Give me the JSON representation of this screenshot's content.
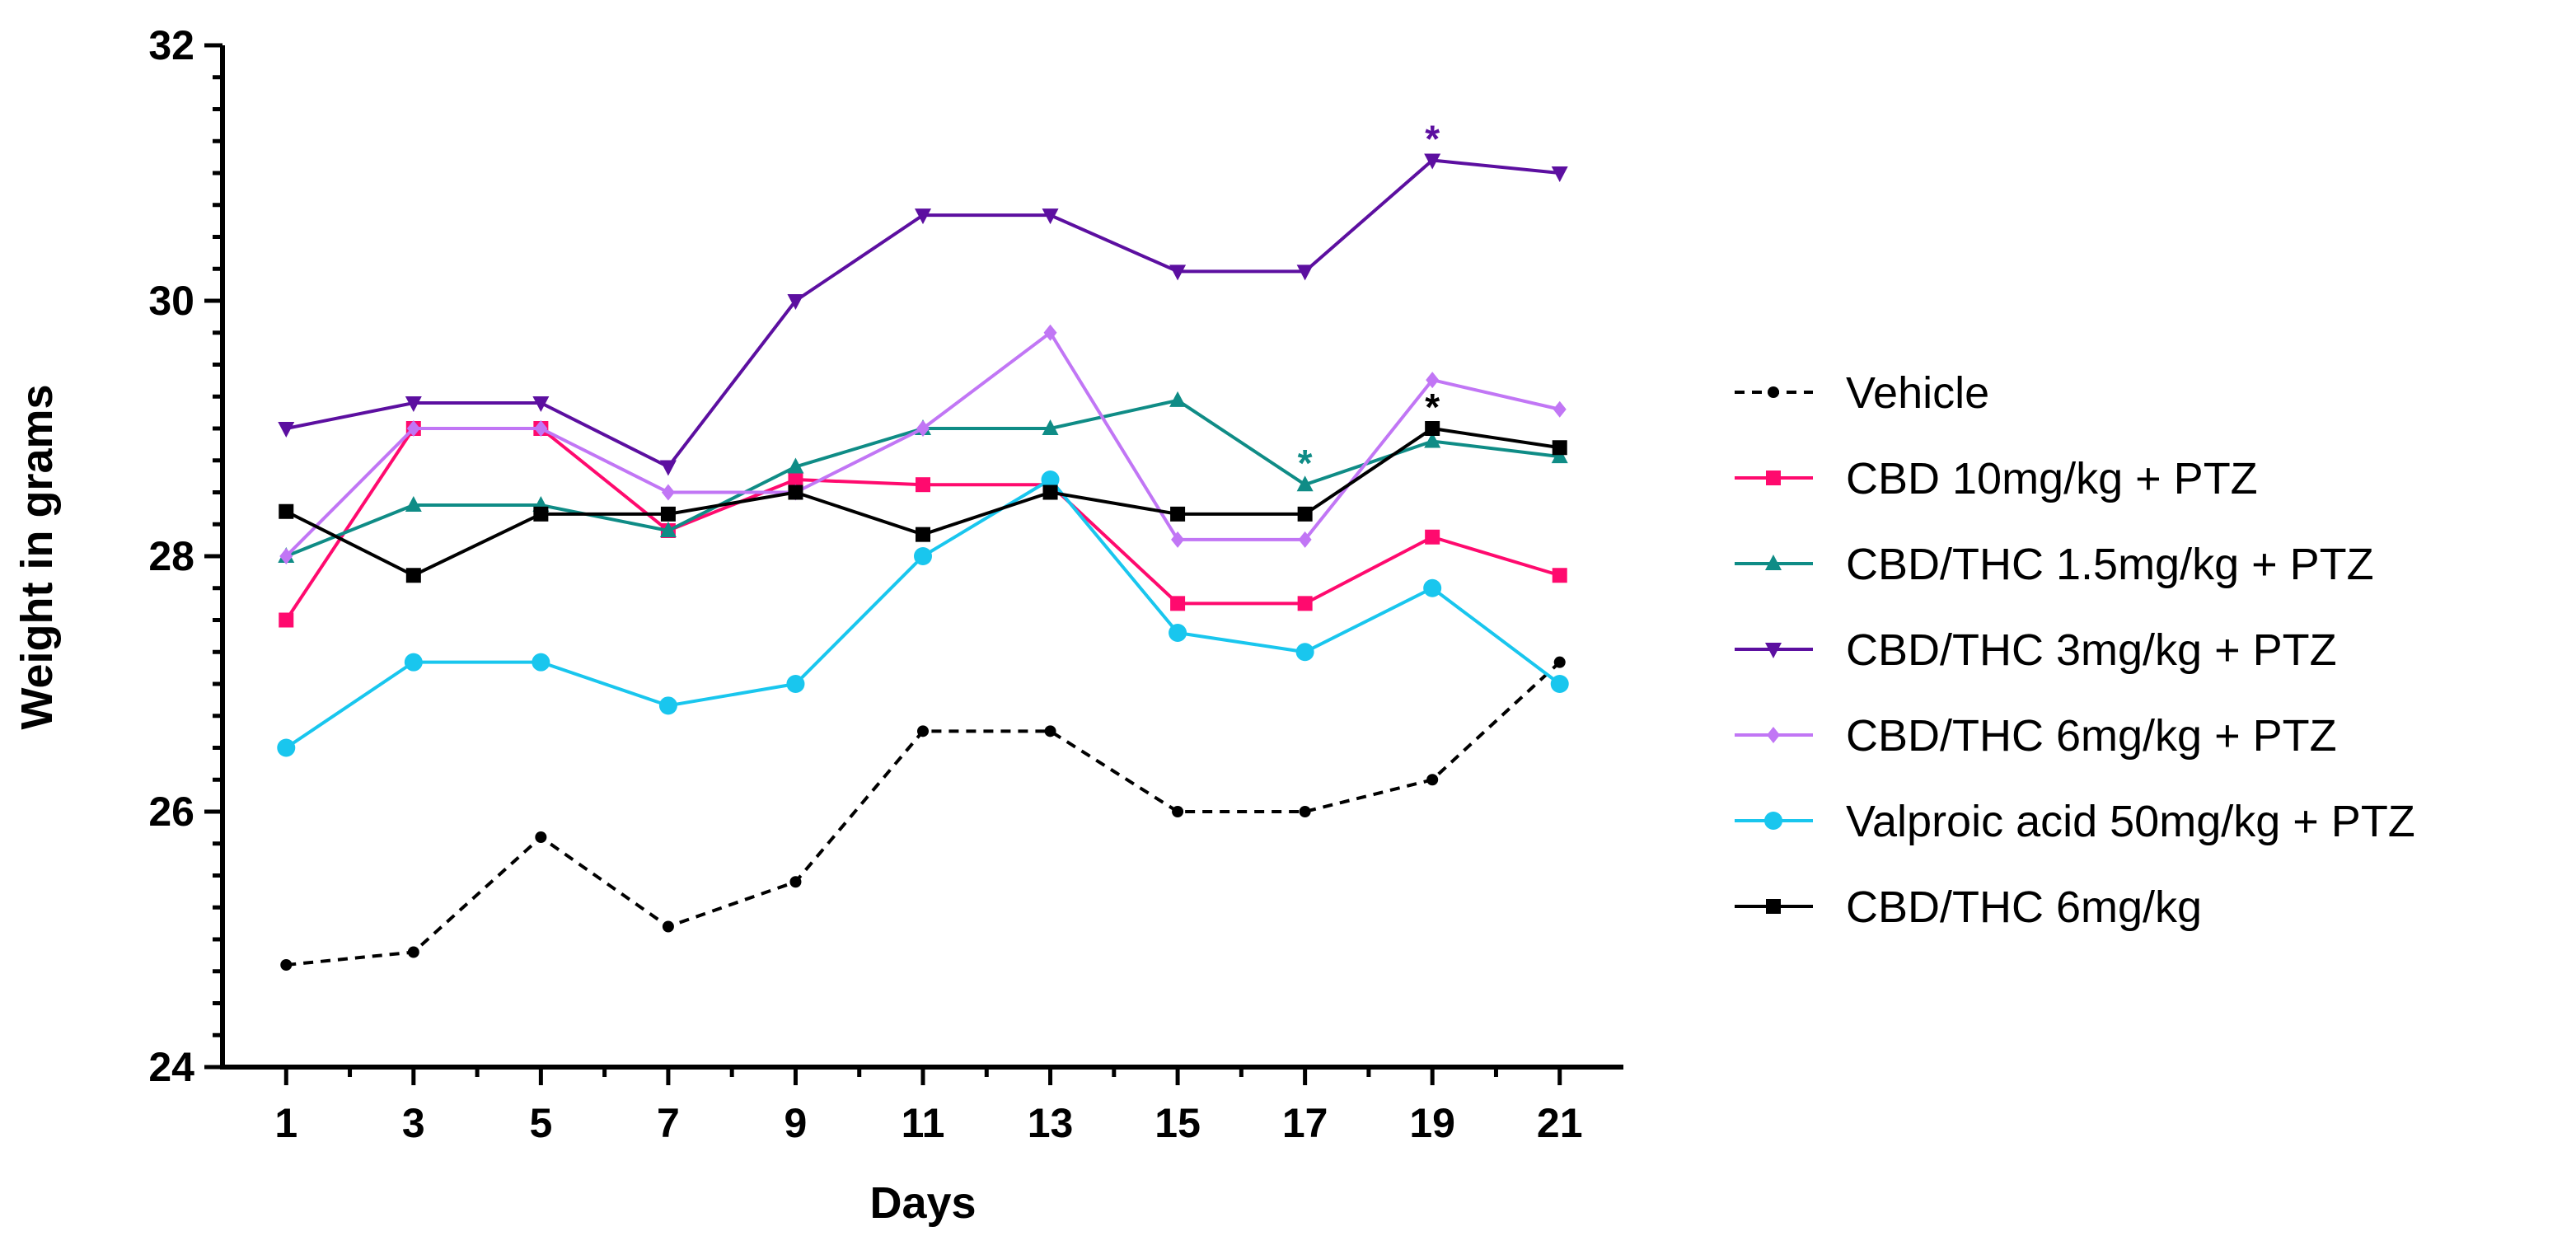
{
  "chart_data": {
    "type": "line",
    "title": "",
    "xlabel": "Days",
    "ylabel": "Weight in grams",
    "x": [
      1,
      3,
      5,
      7,
      9,
      11,
      13,
      15,
      17,
      19,
      21
    ],
    "xticks": [
      "1",
      "3",
      "5",
      "7",
      "9",
      "11",
      "13",
      "15",
      "17",
      "19",
      "21"
    ],
    "xlim": [
      0,
      22
    ],
    "ylim": [
      24,
      32
    ],
    "yticks": [
      "24",
      "26",
      "28",
      "30",
      "32"
    ],
    "grid": false,
    "legend_position": "right",
    "series": [
      {
        "name": "Vehicle",
        "color": "#000000",
        "marker": "circle",
        "dashed": true,
        "values": [
          24.8,
          24.9,
          25.8,
          25.1,
          25.45,
          26.63,
          26.63,
          26.0,
          26.0,
          26.25,
          27.17
        ]
      },
      {
        "name": "CBD 10mg/kg + PTZ",
        "color": "#ff0a6e",
        "marker": "square",
        "dashed": false,
        "values": [
          27.5,
          29.0,
          29.0,
          28.2,
          28.6,
          28.56,
          28.56,
          27.63,
          27.63,
          28.15,
          27.85
        ]
      },
      {
        "name": "CBD/THC 1.5mg/kg + PTZ",
        "color": "#0f8c86",
        "marker": "triangle-up",
        "dashed": false,
        "values": [
          28.0,
          28.4,
          28.4,
          28.2,
          28.7,
          29.0,
          29.0,
          29.22,
          28.56,
          28.9,
          28.78
        ]
      },
      {
        "name": "CBD/THC 3mg/kg + PTZ",
        "color": "#5c0fa0",
        "marker": "triangle-down",
        "dashed": false,
        "values": [
          29.0,
          29.2,
          29.2,
          28.7,
          30.0,
          30.67,
          30.67,
          30.23,
          30.23,
          31.1,
          31.0
        ]
      },
      {
        "name": "CBD/THC 6mg/kg + PTZ",
        "color": "#c176f5",
        "marker": "diamond",
        "dashed": false,
        "values": [
          28.0,
          29.0,
          29.0,
          28.5,
          28.5,
          29.0,
          29.75,
          28.13,
          28.13,
          29.38,
          29.15
        ]
      },
      {
        "name": "Valproic acid 50mg/kg + PTZ",
        "color": "#19c6ee",
        "marker": "big-circle",
        "dashed": false,
        "values": [
          26.5,
          27.17,
          27.17,
          26.83,
          27.0,
          28.0,
          28.6,
          27.4,
          27.25,
          27.75,
          27.0
        ]
      },
      {
        "name": "CBD/THC 6mg/kg",
        "color": "#000000",
        "marker": "square",
        "dashed": false,
        "values": [
          28.35,
          27.85,
          28.33,
          28.33,
          28.5,
          28.17,
          28.5,
          28.33,
          28.33,
          29.0,
          28.85
        ]
      }
    ],
    "annotations": [
      {
        "text": "*",
        "x": 19,
        "y": 31.1,
        "color": "#5c0fa0"
      },
      {
        "text": "*",
        "x": 17,
        "y": 28.56,
        "color": "#0f8c86"
      },
      {
        "text": "*",
        "x": 19,
        "y": 29.0,
        "color": "#000000"
      }
    ]
  }
}
